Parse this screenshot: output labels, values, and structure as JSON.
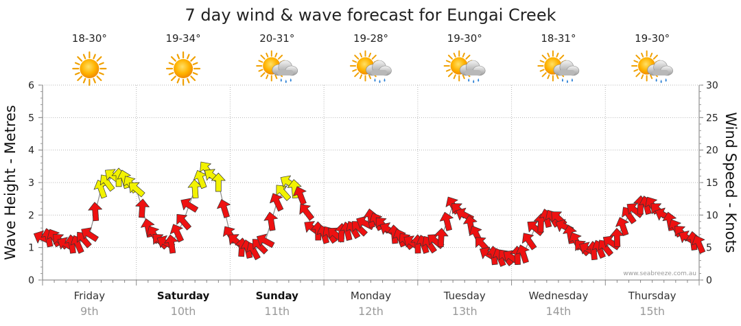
{
  "chart_data": {
    "type": "line",
    "title": "7 day wind & wave forecast for Eungai Creek",
    "ylabel_left": "Wave Height - Metres",
    "ylabel_right": "Wind Speed - Knots",
    "ylim_left": [
      0,
      6
    ],
    "ylim_right": [
      0,
      30
    ],
    "yticks_left": [
      "0",
      "1",
      "2",
      "3",
      "4",
      "5",
      "6"
    ],
    "yticks_right": [
      "0",
      "5",
      "10",
      "15",
      "20",
      "25",
      "30"
    ],
    "credit": "www.seabreeze.com.au",
    "days": [
      {
        "name": "Friday",
        "date": "9th",
        "temp": "18-30°",
        "icon": "sunny-icon",
        "bold": false
      },
      {
        "name": "Saturday",
        "date": "10th",
        "temp": "19-34°",
        "icon": "sunny-icon",
        "bold": true
      },
      {
        "name": "Sunday",
        "date": "11th",
        "temp": "20-31°",
        "icon": "sun-cloud-rain-icon",
        "bold": true
      },
      {
        "name": "Monday",
        "date": "12th",
        "temp": "19-28°",
        "icon": "sun-cloud-rain-icon",
        "bold": false
      },
      {
        "name": "Tuesday",
        "date": "13th",
        "temp": "19-30°",
        "icon": "sun-cloud-rain-icon",
        "bold": false
      },
      {
        "name": "Wednesday",
        "date": "14th",
        "temp": "18-31°",
        "icon": "sun-cloud-rain-icon",
        "bold": false
      },
      {
        "name": "Thursday",
        "date": "15th",
        "temp": "19-30°",
        "icon": "sun-cloud-rain-icon",
        "bold": false
      }
    ],
    "series": [
      {
        "name": "Wind Speed (knots)",
        "unit": "knots",
        "hours": [
          0,
          3,
          6,
          9,
          12,
          15,
          18,
          21,
          24,
          27,
          30,
          33,
          36,
          39,
          42,
          45,
          48,
          51,
          54,
          57,
          60,
          63,
          66,
          69,
          72,
          75,
          78,
          81,
          84,
          87,
          90,
          93,
          96,
          99,
          102,
          105,
          108,
          111,
          114,
          117,
          120,
          123,
          126,
          129,
          132,
          135,
          138,
          141,
          144,
          147,
          150,
          153,
          156,
          159,
          162,
          165,
          168
        ],
        "values": [
          6.5,
          6.5,
          5.5,
          5.5,
          7,
          14,
          16,
          15.5,
          14,
          8,
          6,
          5.5,
          9,
          14,
          17,
          15,
          7,
          5,
          4.5,
          6,
          12,
          15,
          13,
          8,
          7,
          7,
          7.5,
          8,
          9.5,
          8.5,
          7,
          6,
          5.5,
          5.5,
          6.5,
          11.5,
          10,
          7,
          4,
          3.5,
          3.5,
          4,
          8,
          9.5,
          9.5,
          7,
          5,
          4.5,
          5,
          6.5,
          10,
          11.5,
          11.5,
          10,
          8,
          6.5,
          5.5
        ]
      },
      {
        "name": "Wave Height (metres)",
        "unit": "metres",
        "hours": [
          0,
          168
        ],
        "values": [
          0,
          0
        ]
      }
    ],
    "color_scale": [
      {
        "max_knots": 13,
        "color": "#ee1111"
      },
      {
        "max_knots": 30,
        "color": "#f2f200"
      }
    ]
  }
}
